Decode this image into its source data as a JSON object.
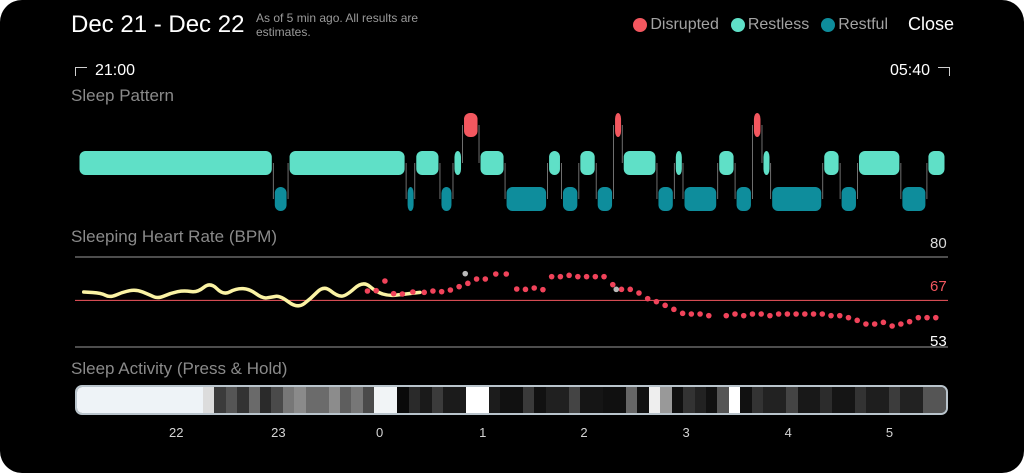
{
  "header": {
    "title": "Dec 21 - Dec 22",
    "subtitle": "As of 5 min ago. All results are estimates.",
    "close_label": "Close"
  },
  "legend": [
    {
      "label": "Disrupted",
      "color": "#f3575f"
    },
    {
      "label": "Restless",
      "color": "#5fe0c7"
    },
    {
      "label": "Restful",
      "color": "#0e8d9c"
    }
  ],
  "time_range": {
    "start": "21:00",
    "end": "05:40"
  },
  "sleep_pattern": {
    "label": "Sleep Pattern",
    "stages": [
      {
        "type": "restless",
        "start": 0.0,
        "end": 0.225
      },
      {
        "type": "restful",
        "start": 0.225,
        "end": 0.242
      },
      {
        "type": "restless",
        "start": 0.242,
        "end": 0.378
      },
      {
        "type": "restful",
        "start": 0.378,
        "end": 0.388
      },
      {
        "type": "restless",
        "start": 0.388,
        "end": 0.417
      },
      {
        "type": "restful",
        "start": 0.417,
        "end": 0.432
      },
      {
        "type": "restless",
        "start": 0.432,
        "end": 0.443
      },
      {
        "type": "disrupted",
        "start": 0.443,
        "end": 0.462
      },
      {
        "type": "restless",
        "start": 0.462,
        "end": 0.492
      },
      {
        "type": "restful",
        "start": 0.492,
        "end": 0.541
      },
      {
        "type": "restless",
        "start": 0.541,
        "end": 0.557
      },
      {
        "type": "restful",
        "start": 0.557,
        "end": 0.577
      },
      {
        "type": "restless",
        "start": 0.577,
        "end": 0.597
      },
      {
        "type": "restful",
        "start": 0.597,
        "end": 0.617
      },
      {
        "type": "disrupted",
        "start": 0.617,
        "end": 0.627
      },
      {
        "type": "restless",
        "start": 0.627,
        "end": 0.667
      },
      {
        "type": "restful",
        "start": 0.667,
        "end": 0.687
      },
      {
        "type": "restless",
        "start": 0.687,
        "end": 0.697
      },
      {
        "type": "restful",
        "start": 0.697,
        "end": 0.737
      },
      {
        "type": "restless",
        "start": 0.737,
        "end": 0.757
      },
      {
        "type": "restful",
        "start": 0.757,
        "end": 0.777
      },
      {
        "type": "disrupted",
        "start": 0.777,
        "end": 0.788
      },
      {
        "type": "restless",
        "start": 0.788,
        "end": 0.798
      },
      {
        "type": "restful",
        "start": 0.798,
        "end": 0.858
      },
      {
        "type": "restless",
        "start": 0.858,
        "end": 0.878
      },
      {
        "type": "restful",
        "start": 0.878,
        "end": 0.898
      },
      {
        "type": "restless",
        "start": 0.898,
        "end": 0.948
      },
      {
        "type": "restful",
        "start": 0.948,
        "end": 0.978
      },
      {
        "type": "restless",
        "start": 0.978,
        "end": 1.0
      }
    ]
  },
  "heart_rate": {
    "label": "Sleeping Heart Rate (BPM)",
    "ticks": [
      {
        "value": 80,
        "label": "80",
        "color": "#d8d8d8",
        "line": "#9a9a9a"
      },
      {
        "value": 67,
        "label": "67",
        "color": "#f3575f",
        "line": "#f3575f"
      },
      {
        "value": 53,
        "label": "53",
        "color": "#ffffff",
        "line": "#9a9a9a"
      }
    ],
    "y_range": [
      50,
      82
    ],
    "curve_color": "#fbf3a4",
    "dot_color": "#f0435a",
    "highlight_color": "#b9b9b9",
    "curve": [
      [
        0.01,
        69.5
      ],
      [
        0.03,
        69.2
      ],
      [
        0.04,
        67.8
      ],
      [
        0.055,
        69.5
      ],
      [
        0.07,
        70.3
      ],
      [
        0.085,
        68.7
      ],
      [
        0.095,
        67.5
      ],
      [
        0.11,
        69.2
      ],
      [
        0.125,
        70.0
      ],
      [
        0.14,
        69.3
      ],
      [
        0.155,
        72.5
      ],
      [
        0.17,
        68.5
      ],
      [
        0.185,
        70.6
      ],
      [
        0.2,
        70.4
      ],
      [
        0.215,
        67.5
      ],
      [
        0.225,
        68.0
      ],
      [
        0.235,
        68.4
      ],
      [
        0.255,
        64.5
      ],
      [
        0.27,
        67.5
      ],
      [
        0.285,
        71.5
      ],
      [
        0.3,
        68.3
      ],
      [
        0.31,
        68.2
      ],
      [
        0.33,
        72.9
      ],
      [
        0.345,
        69.5
      ],
      [
        0.36,
        68.3
      ],
      [
        0.375,
        68.8
      ],
      [
        0.395,
        69.4
      ]
    ],
    "dots": [
      [
        0.335,
        69.8
      ],
      [
        0.345,
        69.9
      ],
      [
        0.355,
        72.8
      ],
      [
        0.365,
        69.0
      ],
      [
        0.375,
        68.9
      ],
      [
        0.387,
        69.5
      ],
      [
        0.4,
        69.4
      ],
      [
        0.41,
        69.8
      ],
      [
        0.42,
        69.6
      ],
      [
        0.43,
        70.1
      ],
      [
        0.44,
        71.1
      ],
      [
        0.45,
        72.1
      ],
      [
        0.46,
        73.4
      ],
      [
        0.47,
        73.4
      ],
      [
        0.482,
        74.9
      ],
      [
        0.494,
        74.9
      ],
      [
        0.506,
        70.4
      ],
      [
        0.516,
        70.3
      ],
      [
        0.526,
        70.7
      ],
      [
        0.536,
        70.2
      ],
      [
        0.546,
        74.1
      ],
      [
        0.556,
        74.1
      ],
      [
        0.566,
        74.5
      ],
      [
        0.576,
        74.1
      ],
      [
        0.586,
        74.1
      ],
      [
        0.596,
        74.1
      ],
      [
        0.606,
        74.1
      ],
      [
        0.616,
        71.7
      ],
      [
        0.626,
        70.3
      ],
      [
        0.636,
        70.3
      ],
      [
        0.646,
        69.2
      ],
      [
        0.656,
        67.5
      ],
      [
        0.666,
        66.6
      ],
      [
        0.676,
        65.5
      ],
      [
        0.686,
        64.3
      ],
      [
        0.696,
        63.1
      ],
      [
        0.706,
        62.9
      ],
      [
        0.716,
        62.9
      ],
      [
        0.726,
        62.4
      ],
      [
        0.746,
        62.4
      ],
      [
        0.756,
        62.9
      ],
      [
        0.766,
        62.4
      ],
      [
        0.776,
        62.9
      ],
      [
        0.786,
        62.9
      ],
      [
        0.796,
        62.4
      ],
      [
        0.806,
        62.9
      ],
      [
        0.816,
        62.9
      ],
      [
        0.826,
        62.9
      ],
      [
        0.836,
        62.9
      ],
      [
        0.846,
        62.9
      ],
      [
        0.856,
        62.9
      ],
      [
        0.866,
        62.4
      ],
      [
        0.876,
        62.4
      ],
      [
        0.886,
        61.8
      ],
      [
        0.896,
        61.0
      ],
      [
        0.906,
        59.9
      ],
      [
        0.916,
        59.9
      ],
      [
        0.926,
        60.4
      ],
      [
        0.936,
        59.3
      ],
      [
        0.946,
        59.9
      ],
      [
        0.956,
        60.6
      ],
      [
        0.966,
        61.8
      ],
      [
        0.976,
        61.8
      ],
      [
        0.986,
        61.8
      ]
    ],
    "highlights": [
      [
        0.447,
        75.0
      ],
      [
        0.62,
        70.3
      ]
    ]
  },
  "sleep_activity": {
    "label": "Sleep Activity (Press & Hold)",
    "segments": [
      {
        "shade": "#eef3f7",
        "w": 11
      },
      {
        "shade": "#dcdcdc",
        "w": 1
      },
      {
        "shade": "#3b3b3b",
        "w": 1
      },
      {
        "shade": "#555555",
        "w": 1
      },
      {
        "shade": "#333333",
        "w": 1
      },
      {
        "shade": "#6a6a6a",
        "w": 1
      },
      {
        "shade": "#2a2a2a",
        "w": 1
      },
      {
        "shade": "#4a4a4a",
        "w": 1
      },
      {
        "shade": "#777777",
        "w": 1
      },
      {
        "shade": "#8a8a8a",
        "w": 1
      },
      {
        "shade": "#6b6b6b",
        "w": 2
      },
      {
        "shade": "#8c8c8c",
        "w": 1
      },
      {
        "shade": "#5e5e5e",
        "w": 1
      },
      {
        "shade": "#777777",
        "w": 1
      },
      {
        "shade": "#4a4a4a",
        "w": 1
      },
      {
        "shade": "#f1f4f6",
        "w": 2
      },
      {
        "shade": "#0a0a0a",
        "w": 1
      },
      {
        "shade": "#2a2a2a",
        "w": 1
      },
      {
        "shade": "#1a1a1a",
        "w": 1
      },
      {
        "shade": "#3b3b3b",
        "w": 1
      },
      {
        "shade": "#1b1b1b",
        "w": 2
      },
      {
        "shade": "#ffffff",
        "w": 2
      },
      {
        "shade": "#1c1c1c",
        "w": 1
      },
      {
        "shade": "#111111",
        "w": 2
      },
      {
        "shade": "#3a3a3a",
        "w": 1
      },
      {
        "shade": "#111111",
        "w": 1
      },
      {
        "shade": "#202020",
        "w": 2
      },
      {
        "shade": "#444444",
        "w": 1
      },
      {
        "shade": "#151515",
        "w": 2
      },
      {
        "shade": "#101010",
        "w": 2
      },
      {
        "shade": "#666666",
        "w": 1
      },
      {
        "shade": "#111111",
        "w": 1
      },
      {
        "shade": "#eeeeee",
        "w": 1
      },
      {
        "shade": "#999999",
        "w": 1
      },
      {
        "shade": "#101010",
        "w": 1
      },
      {
        "shade": "#333333",
        "w": 1
      },
      {
        "shade": "#222222",
        "w": 1
      },
      {
        "shade": "#111111",
        "w": 1
      },
      {
        "shade": "#555555",
        "w": 1
      },
      {
        "shade": "#ffffff",
        "w": 1
      },
      {
        "shade": "#111111",
        "w": 1
      },
      {
        "shade": "#333333",
        "w": 1
      },
      {
        "shade": "#222222",
        "w": 2
      },
      {
        "shade": "#444444",
        "w": 1
      },
      {
        "shade": "#181818",
        "w": 2
      },
      {
        "shade": "#2c2c2c",
        "w": 1
      },
      {
        "shade": "#151515",
        "w": 2
      },
      {
        "shade": "#333333",
        "w": 1
      },
      {
        "shade": "#1e1e1e",
        "w": 2
      },
      {
        "shade": "#3c3c3c",
        "w": 1
      },
      {
        "shade": "#222222",
        "w": 2
      },
      {
        "shade": "#555555",
        "w": 2
      }
    ]
  },
  "hour_axis": [
    {
      "label": "22",
      "pos": 0.116
    },
    {
      "label": "23",
      "pos": 0.233
    },
    {
      "label": "0",
      "pos": 0.349
    },
    {
      "label": "1",
      "pos": 0.467
    },
    {
      "label": "2",
      "pos": 0.583
    },
    {
      "label": "3",
      "pos": 0.7
    },
    {
      "label": "4",
      "pos": 0.817
    },
    {
      "label": "5",
      "pos": 0.933
    }
  ]
}
